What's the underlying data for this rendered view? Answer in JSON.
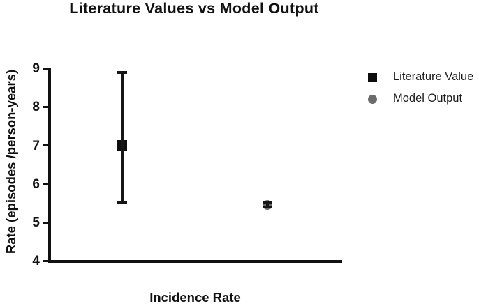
{
  "chart_data": {
    "type": "scatter",
    "title": "Literature Values vs Model Output",
    "xlabel": "Incidence Rate",
    "ylabel": "Rate (episodes /person-years)",
    "ylim": [
      4,
      9
    ],
    "yticks": [
      4,
      5,
      6,
      7,
      8,
      9
    ],
    "grid": false,
    "legend_position": "right",
    "categories": [
      "Incidence Rate"
    ],
    "series": [
      {
        "name": "Literature Value",
        "marker": "square",
        "color": "#0d0d0d",
        "value": 7.0,
        "error_low": 5.5,
        "error_high": 8.9
      },
      {
        "name": "Model Output",
        "marker": "circle",
        "color": "#6b6b6b",
        "value": 5.45,
        "error_low": 5.4,
        "error_high": 5.5
      }
    ]
  },
  "legend": {
    "items": [
      {
        "label": "Literature Value",
        "icon": "square-icon",
        "color": "#0d0d0d"
      },
      {
        "label": "Model Output",
        "icon": "circle-icon",
        "color": "#6b6b6b"
      }
    ]
  },
  "colors": {
    "axis": "#111111",
    "background": "#ffffff",
    "text": "#111111"
  }
}
